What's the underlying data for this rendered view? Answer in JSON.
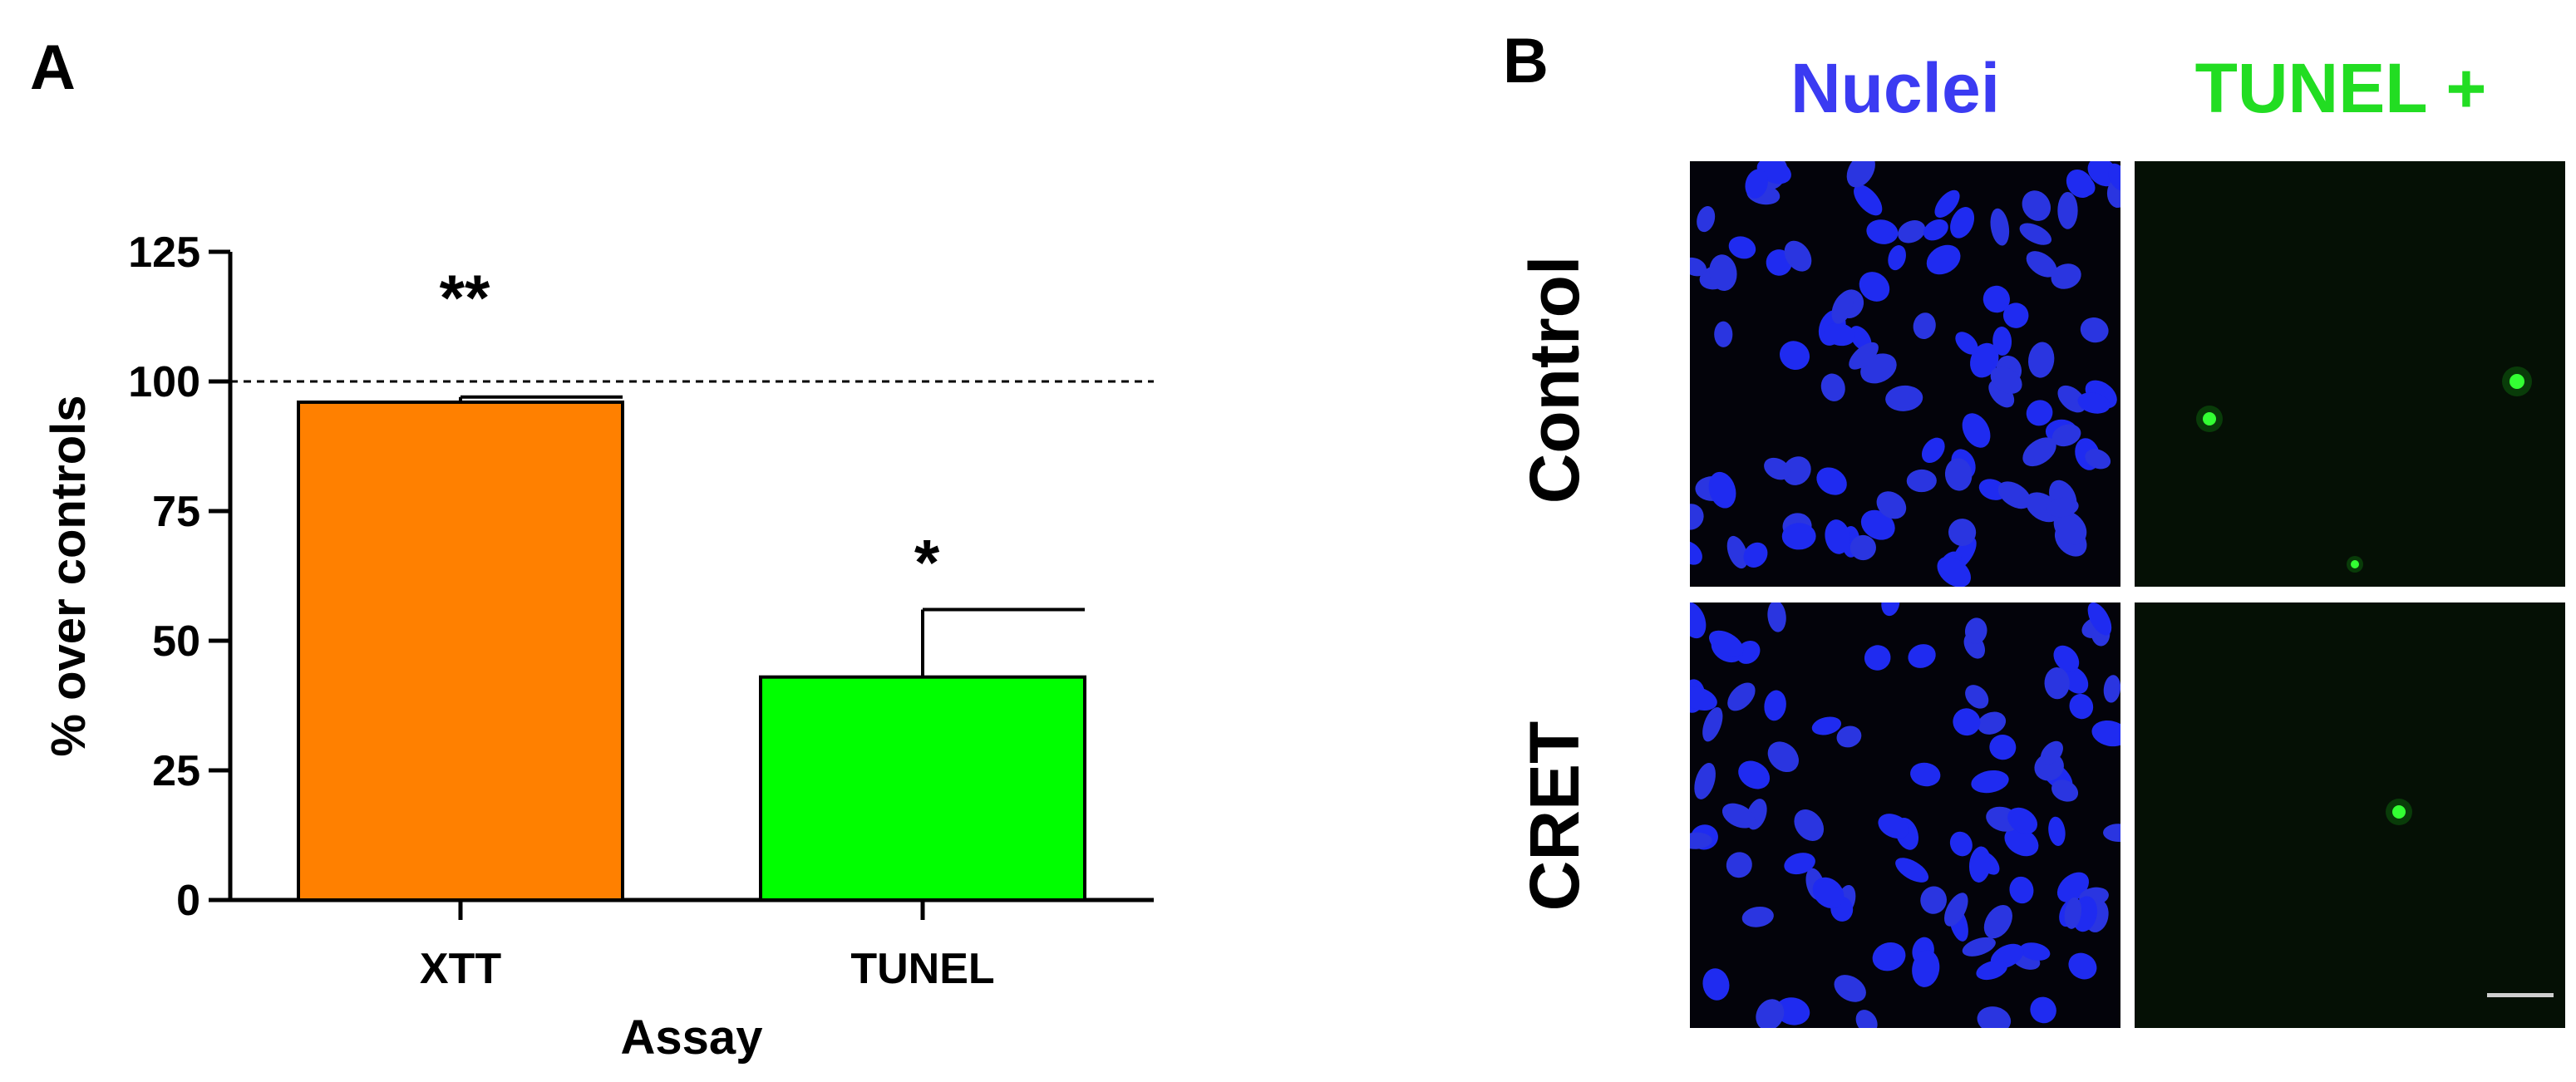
{
  "panel_a": {
    "letter": "A"
  },
  "panel_b": {
    "letter": "B",
    "columns": [
      "Nuclei",
      "TUNEL +"
    ],
    "rows": [
      "Control",
      "CRET"
    ],
    "column_colors": {
      "nuclei": "#3b3bf2",
      "tunel": "#22dd22"
    }
  },
  "chart_data": {
    "type": "bar",
    "title": "",
    "xlabel": "Assay",
    "ylabel": "% over controls",
    "categories": [
      "XTT",
      "TUNEL"
    ],
    "values": [
      96,
      43
    ],
    "errors": [
      1,
      13
    ],
    "colors": [
      "#ff8000",
      "#00ff00"
    ],
    "significance": [
      "**",
      "*"
    ],
    "reference_line": 100,
    "ylim": [
      0,
      125
    ],
    "yticks": [
      "0",
      "25",
      "50",
      "75",
      "100",
      "125"
    ],
    "grid": false,
    "legend": "none"
  }
}
